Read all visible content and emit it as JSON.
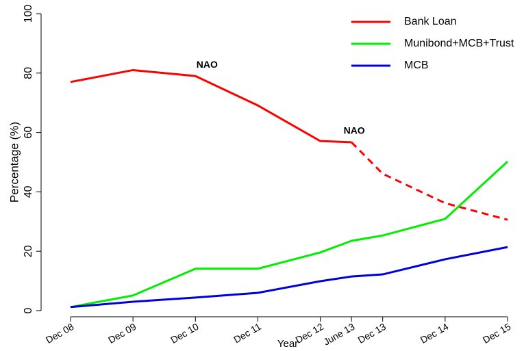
{
  "chart_data": {
    "type": "line",
    "x_label": "Year",
    "y_label": "Percentage (%)",
    "x": [
      "2008-12",
      "2009-12",
      "2010-12",
      "2011-12",
      "2012-12",
      "2013-06",
      "2013-12",
      "2014-12",
      "2015-12"
    ],
    "xticks": [
      {
        "value": "2008-12",
        "label": "Dec 08"
      },
      {
        "value": "2009-12",
        "label": "Dec 09"
      },
      {
        "value": "2010-12",
        "label": "Dec 10"
      },
      {
        "value": "2011-12",
        "label": "Dec 11"
      },
      {
        "value": "2012-12",
        "label": "Dec 12"
      },
      {
        "value": "2013-06",
        "label": "June 13"
      },
      {
        "value": "2013-12",
        "label": "Dec 13"
      },
      {
        "value": "2014-12",
        "label": "Dec 14"
      },
      {
        "value": "2015-12",
        "label": "Dec 15"
      }
    ],
    "xlim": [
      "2008-12",
      "2015-12"
    ],
    "ylim": [
      0,
      100
    ],
    "yticks": [
      0,
      20,
      40,
      60,
      80,
      100
    ],
    "series": [
      {
        "name": "Bank Loan",
        "color": "#ff0000",
        "dashed_after": "2013-06",
        "values": [
          77,
          81,
          79,
          69.1,
          57.1,
          56.7,
          46.1,
          36.2,
          30.6
        ]
      },
      {
        "name": "Munibond+MCB+Trust",
        "color": "#00ee00",
        "values": [
          1.2,
          5.1,
          14.1,
          14.1,
          19.6,
          23.5,
          25.3,
          30.9,
          50.2
        ]
      },
      {
        "name": "MCB",
        "color": "#0000dd",
        "values": [
          1.2,
          3,
          4.4,
          6,
          9.9,
          11.5,
          12.2,
          17.3,
          21.4
        ]
      }
    ],
    "annotations": [
      {
        "text": "NAO",
        "x": "2010-12"
      },
      {
        "text": "NAO",
        "x": "2013-06"
      }
    ],
    "legend": "top-right"
  }
}
